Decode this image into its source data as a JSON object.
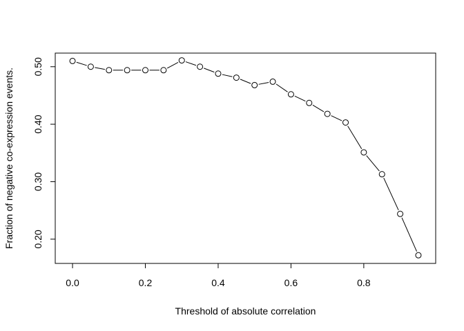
{
  "chart_data": {
    "type": "line",
    "markers": "open-circle",
    "title": "",
    "xlabel": "Threshold of absolute correlation",
    "ylabel": "Fraction of negative co-expression events.",
    "xlim": [
      -0.0475,
      0.9975
    ],
    "ylim": [
      0.1578,
      0.5237
    ],
    "x_ticks": [
      0.0,
      0.2,
      0.4,
      0.6,
      0.8
    ],
    "x_tick_labels": [
      "0.0",
      "0.2",
      "0.4",
      "0.6",
      "0.8"
    ],
    "y_ticks": [
      0.2,
      0.3,
      0.4,
      0.5
    ],
    "y_tick_labels": [
      "0.20",
      "0.30",
      "0.40",
      "0.50"
    ],
    "grid": false,
    "series": [
      {
        "color": "#000000",
        "x": [
          0.0,
          0.05,
          0.1,
          0.15,
          0.2,
          0.25,
          0.3,
          0.35,
          0.4,
          0.45,
          0.5,
          0.55,
          0.6,
          0.65,
          0.7,
          0.75,
          0.8,
          0.85,
          0.9,
          0.95
        ],
        "y": [
          0.51,
          0.5,
          0.494,
          0.494,
          0.494,
          0.494,
          0.511,
          0.5,
          0.488,
          0.481,
          0.468,
          0.474,
          0.452,
          0.437,
          0.418,
          0.403,
          0.351,
          0.313,
          0.244,
          0.172
        ]
      }
    ]
  }
}
